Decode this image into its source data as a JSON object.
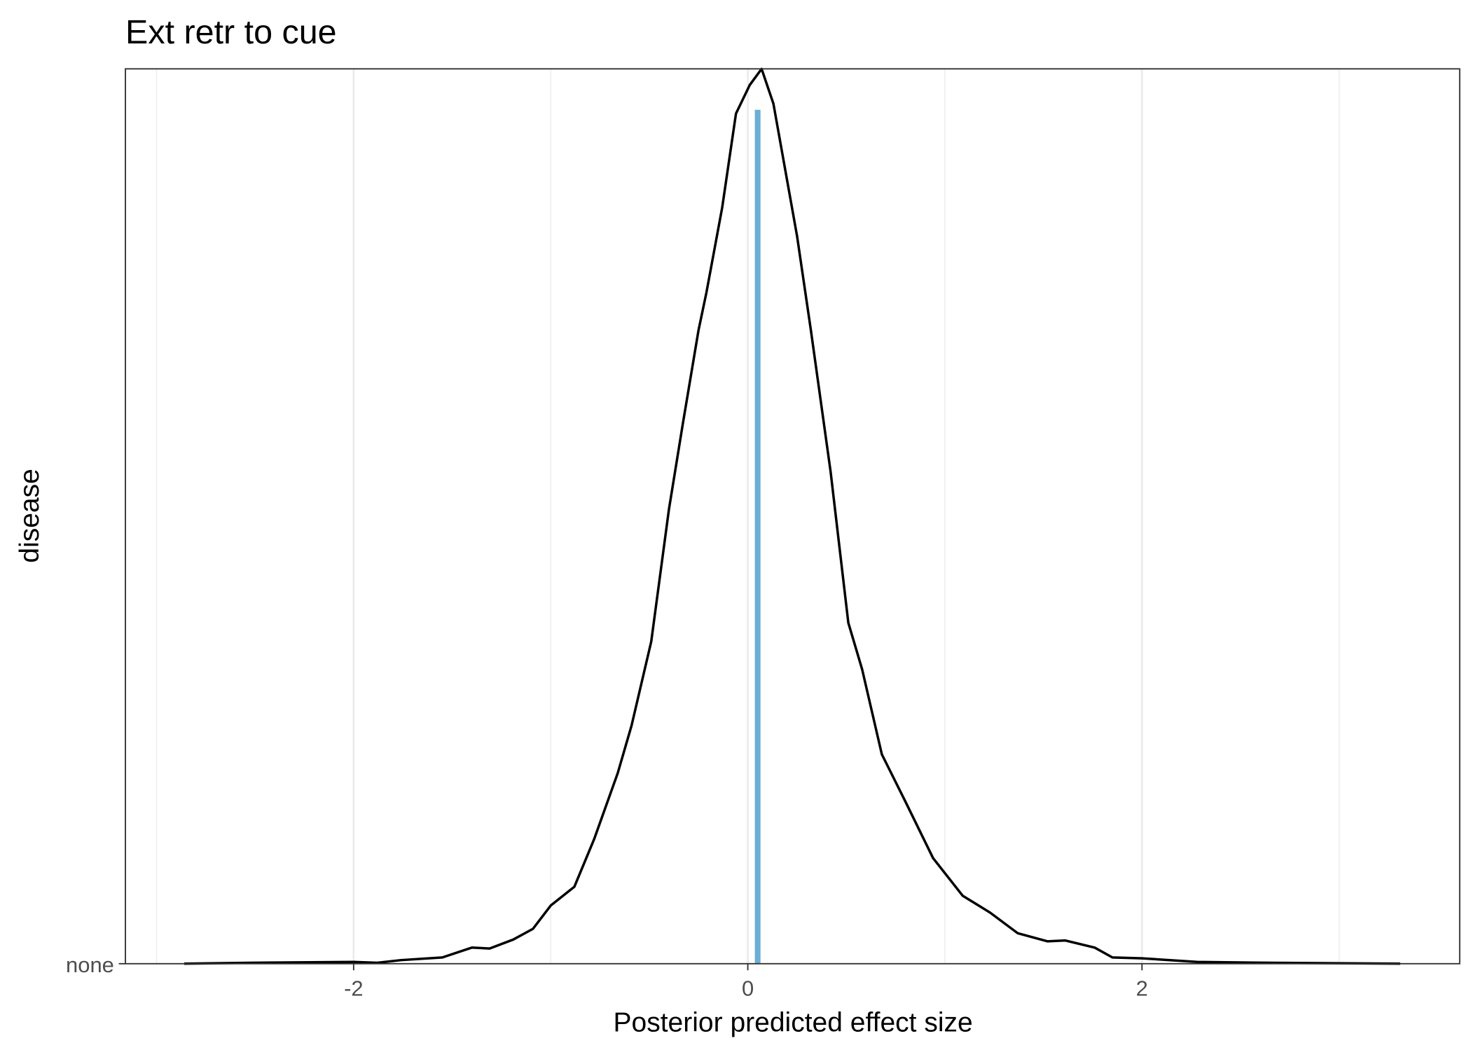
{
  "chart_data": {
    "type": "ridgeline",
    "title": "Ext retr to cue",
    "x_label": "Posterior predicted effect size",
    "y_label": "disease",
    "categories": [
      "none"
    ],
    "x": [
      -2.86,
      -2.53,
      -2.0,
      -1.88,
      -1.76,
      -1.55,
      -1.4,
      -1.31,
      -1.19,
      -1.09,
      -1.0,
      -0.88,
      -0.78,
      -0.66,
      -0.59,
      -0.49,
      -0.4,
      -0.33,
      -0.25,
      -0.21,
      -0.13,
      -0.06,
      0.01,
      0.07,
      0.13,
      0.25,
      0.32,
      0.42,
      0.51,
      0.58,
      0.68,
      0.8,
      0.94,
      1.09,
      1.23,
      1.37,
      1.52,
      1.61,
      1.76,
      1.85,
      2.0,
      2.28,
      2.66,
      3.31
    ],
    "series": [
      {
        "name": "none",
        "color": "#000000",
        "values": [
          0,
          0.001,
          0.002,
          0.001,
          0.004,
          0.007,
          0.018,
          0.017,
          0.027,
          0.039,
          0.065,
          0.086,
          0.139,
          0.213,
          0.266,
          0.36,
          0.508,
          0.603,
          0.708,
          0.75,
          0.845,
          0.95,
          0.982,
          1.0,
          0.961,
          0.813,
          0.708,
          0.55,
          0.381,
          0.329,
          0.234,
          0.181,
          0.118,
          0.076,
          0.057,
          0.034,
          0.025,
          0.026,
          0.018,
          0.007,
          0.006,
          0.002,
          0.001,
          0
        ]
      }
    ],
    "mean_line": {
      "value": 0.05,
      "color": "#6baed6"
    },
    "xlim": [
      -3.158,
      3.612
    ],
    "xticks": [
      -2,
      0,
      2
    ],
    "ylim": [
      0,
      1
    ],
    "grid": true
  }
}
